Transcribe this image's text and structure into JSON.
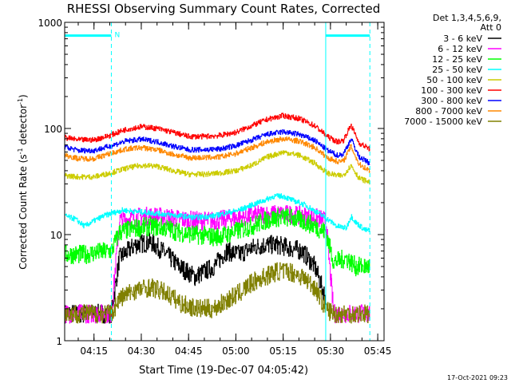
{
  "chart_data": {
    "type": "line",
    "title": "RHESSI Observing Summary Count Rates, Corrected",
    "xlabel": "Start Time (19-Dec-07 04:05:42)",
    "ylabel_main": "Corrected Count Rate (s",
    "ylabel_sup1": "-1",
    "ylabel_mid": " detector",
    "ylabel_sup2": "-1",
    "ylabel_end": ")",
    "footer": "17-Oct-2021 09:23",
    "legend_header": [
      "Det 1,3,4,5,6,9,",
      "Att 0"
    ],
    "y_scale": "log",
    "ylim": [
      1,
      1000
    ],
    "y_ticks": [
      {
        "value": 1,
        "label": "1"
      },
      {
        "value": 10,
        "label": "10"
      },
      {
        "value": 100,
        "label": "100"
      },
      {
        "value": 1000,
        "label": "1000"
      }
    ],
    "xlim_minutes": [
      5.7,
      107
    ],
    "x_ticks": [
      {
        "minute": 15,
        "label": "04:15"
      },
      {
        "minute": 30,
        "label": "04:30"
      },
      {
        "minute": 45,
        "label": "04:45"
      },
      {
        "minute": 60,
        "label": "05:00"
      },
      {
        "minute": 75,
        "label": "05:15"
      },
      {
        "minute": 90,
        "label": "05:30"
      },
      {
        "minute": 105,
        "label": "05:45"
      }
    ],
    "night_marker_label": "N",
    "night_intervals_minutes": [
      [
        5.7,
        20.5
      ],
      [
        88.5,
        102.5
      ]
    ],
    "series": [
      {
        "name": "3 - 6 keV",
        "color": "#000000",
        "x": [
          5.7,
          20.5,
          23,
          28,
          33,
          38,
          42,
          47,
          53,
          57,
          61,
          65,
          69,
          73,
          77,
          81,
          85,
          88.5
        ],
        "y": [
          1.8,
          1.8,
          6,
          8,
          8.5,
          6.5,
          5,
          4,
          5,
          7,
          6.5,
          7.5,
          8,
          8,
          7.5,
          7,
          5,
          2.5
        ]
      },
      {
        "name": "6 - 12 keV",
        "color": "#ff00ff",
        "x": [
          5.7,
          20.5,
          23,
          28,
          33,
          38,
          42,
          47,
          53,
          57,
          61,
          65,
          69,
          73,
          77,
          81,
          85,
          88.5,
          91,
          95,
          100,
          102.5
        ],
        "y": [
          1.8,
          1.8,
          13.5,
          14.5,
          15,
          14.5,
          14,
          13.5,
          13.5,
          14,
          14.5,
          15,
          15.5,
          15.5,
          15.5,
          15,
          14.5,
          13.5,
          1.8,
          1.8,
          1.8,
          1.8
        ]
      },
      {
        "name": "12 - 25 keV",
        "color": "#00ff00",
        "x": [
          5.7,
          8,
          12,
          16,
          20.5,
          23,
          28,
          33,
          38,
          42,
          47,
          53,
          57,
          61,
          65,
          69,
          73,
          77,
          81,
          85,
          88.5,
          91,
          95,
          98,
          102.5
        ],
        "y": [
          6.5,
          6.5,
          6.5,
          6.8,
          7,
          10.5,
          11.5,
          12,
          11.5,
          10.5,
          10,
          9.5,
          10,
          11,
          12,
          13.5,
          14.5,
          14.5,
          13.5,
          12,
          10.5,
          5.5,
          6,
          5,
          5
        ]
      },
      {
        "name": "25 - 50 keV",
        "color": "#00ffff",
        "x": [
          5.7,
          9,
          12,
          15,
          18,
          21,
          24,
          28,
          33,
          38,
          42,
          47,
          53,
          57,
          61,
          65,
          69,
          72,
          75,
          78,
          82,
          86,
          89,
          92,
          95,
          96.5,
          98,
          101,
          102.5
        ],
        "y": [
          15,
          14,
          12,
          13.5,
          15,
          16,
          17,
          16.5,
          16,
          15.5,
          15,
          14.5,
          15,
          16,
          17,
          19,
          21,
          23,
          23,
          21,
          19,
          16,
          14,
          12,
          11.5,
          15,
          13,
          11,
          11
        ]
      },
      {
        "name": "50 - 100 keV",
        "color": "#cccc00",
        "x": [
          5.7,
          10,
          15,
          20,
          25,
          30,
          35,
          40,
          45,
          50,
          55,
          60,
          65,
          70,
          75,
          80,
          85,
          89,
          92,
          94,
          96.5,
          99,
          102.5
        ],
        "y": [
          36,
          35,
          35,
          38,
          42,
          45,
          44,
          40,
          37,
          37,
          38,
          40,
          45,
          54,
          60,
          56,
          47,
          38,
          36,
          36,
          45,
          34,
          31
        ]
      },
      {
        "name": "100 - 300 keV",
        "color": "#ff0000",
        "x": [
          5.7,
          10,
          15,
          20,
          25,
          30,
          35,
          40,
          45,
          50,
          55,
          60,
          65,
          70,
          75,
          80,
          85,
          89,
          92,
          94,
          96.5,
          99,
          102.5
        ],
        "y": [
          82,
          78,
          78,
          86,
          98,
          104,
          100,
          92,
          84,
          84,
          86,
          92,
          106,
          122,
          132,
          124,
          106,
          84,
          75,
          77,
          108,
          73,
          64
        ]
      },
      {
        "name": "300 - 800 keV",
        "color": "#0000ff",
        "x": [
          5.7,
          10,
          15,
          20,
          25,
          30,
          35,
          40,
          45,
          50,
          55,
          60,
          65,
          70,
          75,
          80,
          85,
          89,
          92,
          94,
          96.5,
          99,
          102.5
        ],
        "y": [
          67,
          62,
          62,
          68,
          76,
          79,
          75,
          68,
          63,
          63,
          64,
          69,
          78,
          88,
          93,
          88,
          77,
          62,
          56,
          57,
          80,
          54,
          47
        ]
      },
      {
        "name": "800 - 7000 keV",
        "color": "#ff8800",
        "x": [
          5.7,
          10,
          15,
          20,
          25,
          30,
          35,
          40,
          45,
          50,
          55,
          60,
          65,
          70,
          75,
          80,
          85,
          89,
          92,
          94,
          96.5,
          99,
          102.5
        ],
        "y": [
          56,
          52,
          52,
          58,
          64,
          66,
          63,
          57,
          53,
          53,
          54,
          58,
          66,
          75,
          80,
          76,
          66,
          53,
          49,
          49,
          68,
          46,
          40
        ]
      },
      {
        "name": "7000 - 15000 keV",
        "color": "#808000",
        "x": [
          5.7,
          20.5,
          23,
          28,
          33,
          38,
          43,
          48,
          53,
          57,
          61,
          65,
          69,
          73,
          77,
          81,
          85,
          88.5,
          91,
          95,
          100,
          102.5
        ],
        "y": [
          1.8,
          1.8,
          2.5,
          3.0,
          3.2,
          2.8,
          2.2,
          2.0,
          2.0,
          2.4,
          2.8,
          3.5,
          4.0,
          4.5,
          4.5,
          4.0,
          3.2,
          2.0,
          1.8,
          1.8,
          1.8,
          1.8
        ]
      }
    ]
  }
}
